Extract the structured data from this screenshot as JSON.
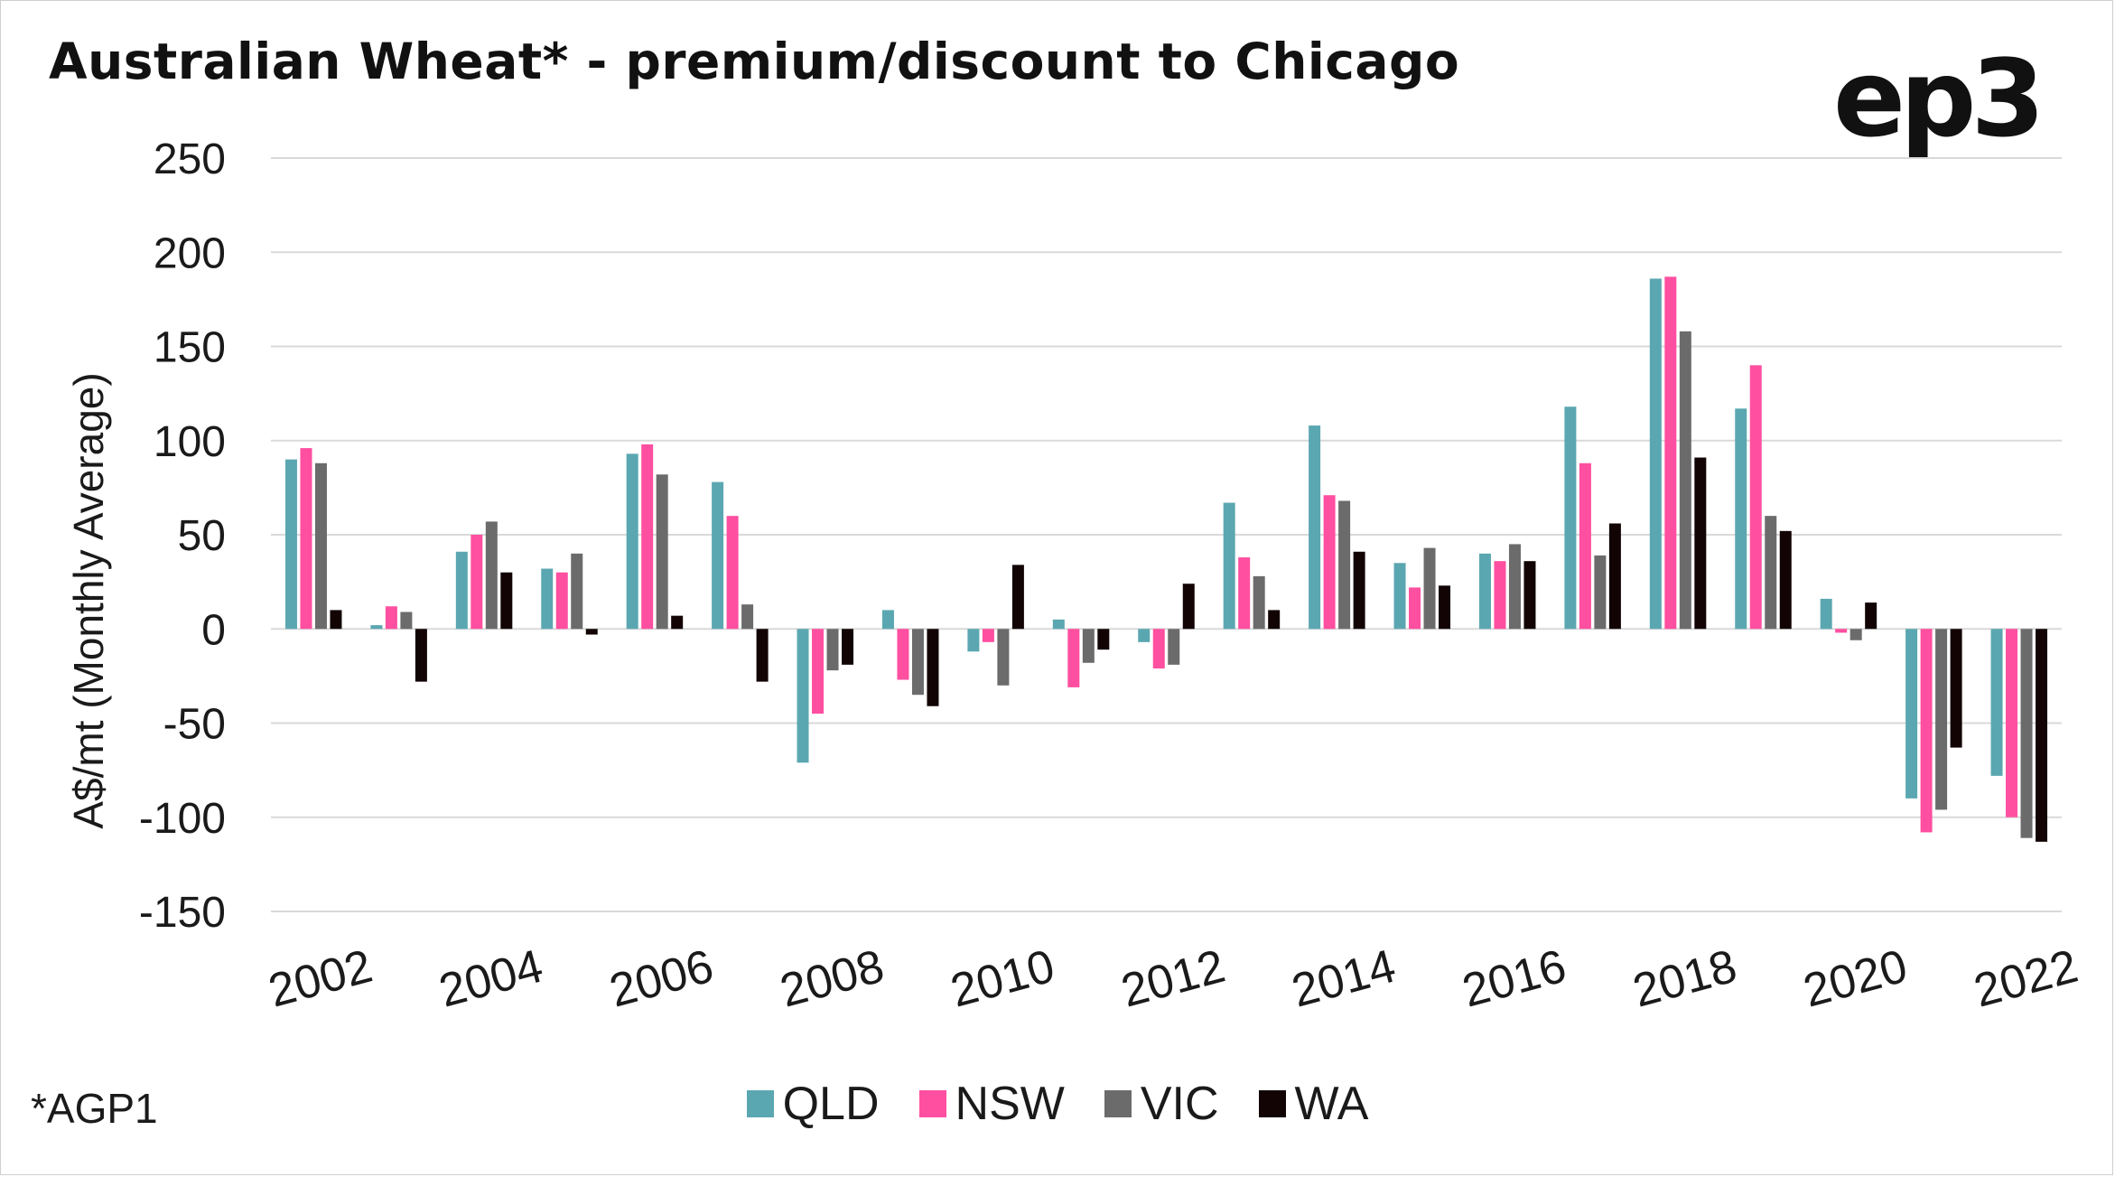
{
  "title": "Australian Wheat* - premium/discount to Chicago",
  "logo_text": "ep3",
  "footnote": "*AGP1",
  "colors": {
    "QLD": "#5ba7b1",
    "NSW": "#ff4fa0",
    "VIC": "#6b6b6b",
    "WA": "#120405",
    "grid": "#d9d9d9",
    "text": "#1a1a1a"
  },
  "chart_data": {
    "type": "bar",
    "title": "Australian Wheat* - premium/discount to Chicago",
    "xlabel": "",
    "ylabel": "A$/mt (Monthly Average)",
    "ylim": [
      -150,
      250
    ],
    "yticks": [
      "250",
      "200",
      "150",
      "100",
      "50",
      "0",
      "-50",
      "-100",
      "-150"
    ],
    "ytick_values": [
      250,
      200,
      150,
      100,
      50,
      0,
      -50,
      -100,
      -150
    ],
    "categories": [
      "2002",
      "2003",
      "2004",
      "2005",
      "2006",
      "2007",
      "2008",
      "2009",
      "2010",
      "2011",
      "2012",
      "2013",
      "2014",
      "2015",
      "2016",
      "2017",
      "2018",
      "2019",
      "2020",
      "2021",
      "2022"
    ],
    "xtick_labels": [
      "2002",
      "2004",
      "2006",
      "2008",
      "2010",
      "2012",
      "2014",
      "2016",
      "2018",
      "2020",
      "2022"
    ],
    "series": [
      {
        "name": "QLD",
        "values": [
          90,
          2,
          41,
          32,
          93,
          78,
          -71,
          10,
          -12,
          5,
          -7,
          67,
          108,
          35,
          40,
          118,
          186,
          117,
          16,
          -90,
          -78
        ]
      },
      {
        "name": "NSW",
        "values": [
          96,
          12,
          50,
          30,
          98,
          60,
          -45,
          -27,
          -7,
          -31,
          -21,
          38,
          71,
          22,
          36,
          88,
          187,
          140,
          -2,
          -108,
          -100
        ]
      },
      {
        "name": "VIC",
        "values": [
          88,
          9,
          57,
          40,
          82,
          13,
          -22,
          -35,
          -30,
          -18,
          -19,
          28,
          68,
          43,
          45,
          39,
          158,
          60,
          -6,
          -96,
          -111
        ]
      },
      {
        "name": "WA",
        "values": [
          10,
          -28,
          30,
          -3,
          7,
          -28,
          -19,
          -41,
          34,
          -11,
          24,
          10,
          41,
          23,
          36,
          56,
          91,
          52,
          14,
          -63,
          -113
        ]
      }
    ],
    "grid": true,
    "legend_position": "bottom"
  }
}
